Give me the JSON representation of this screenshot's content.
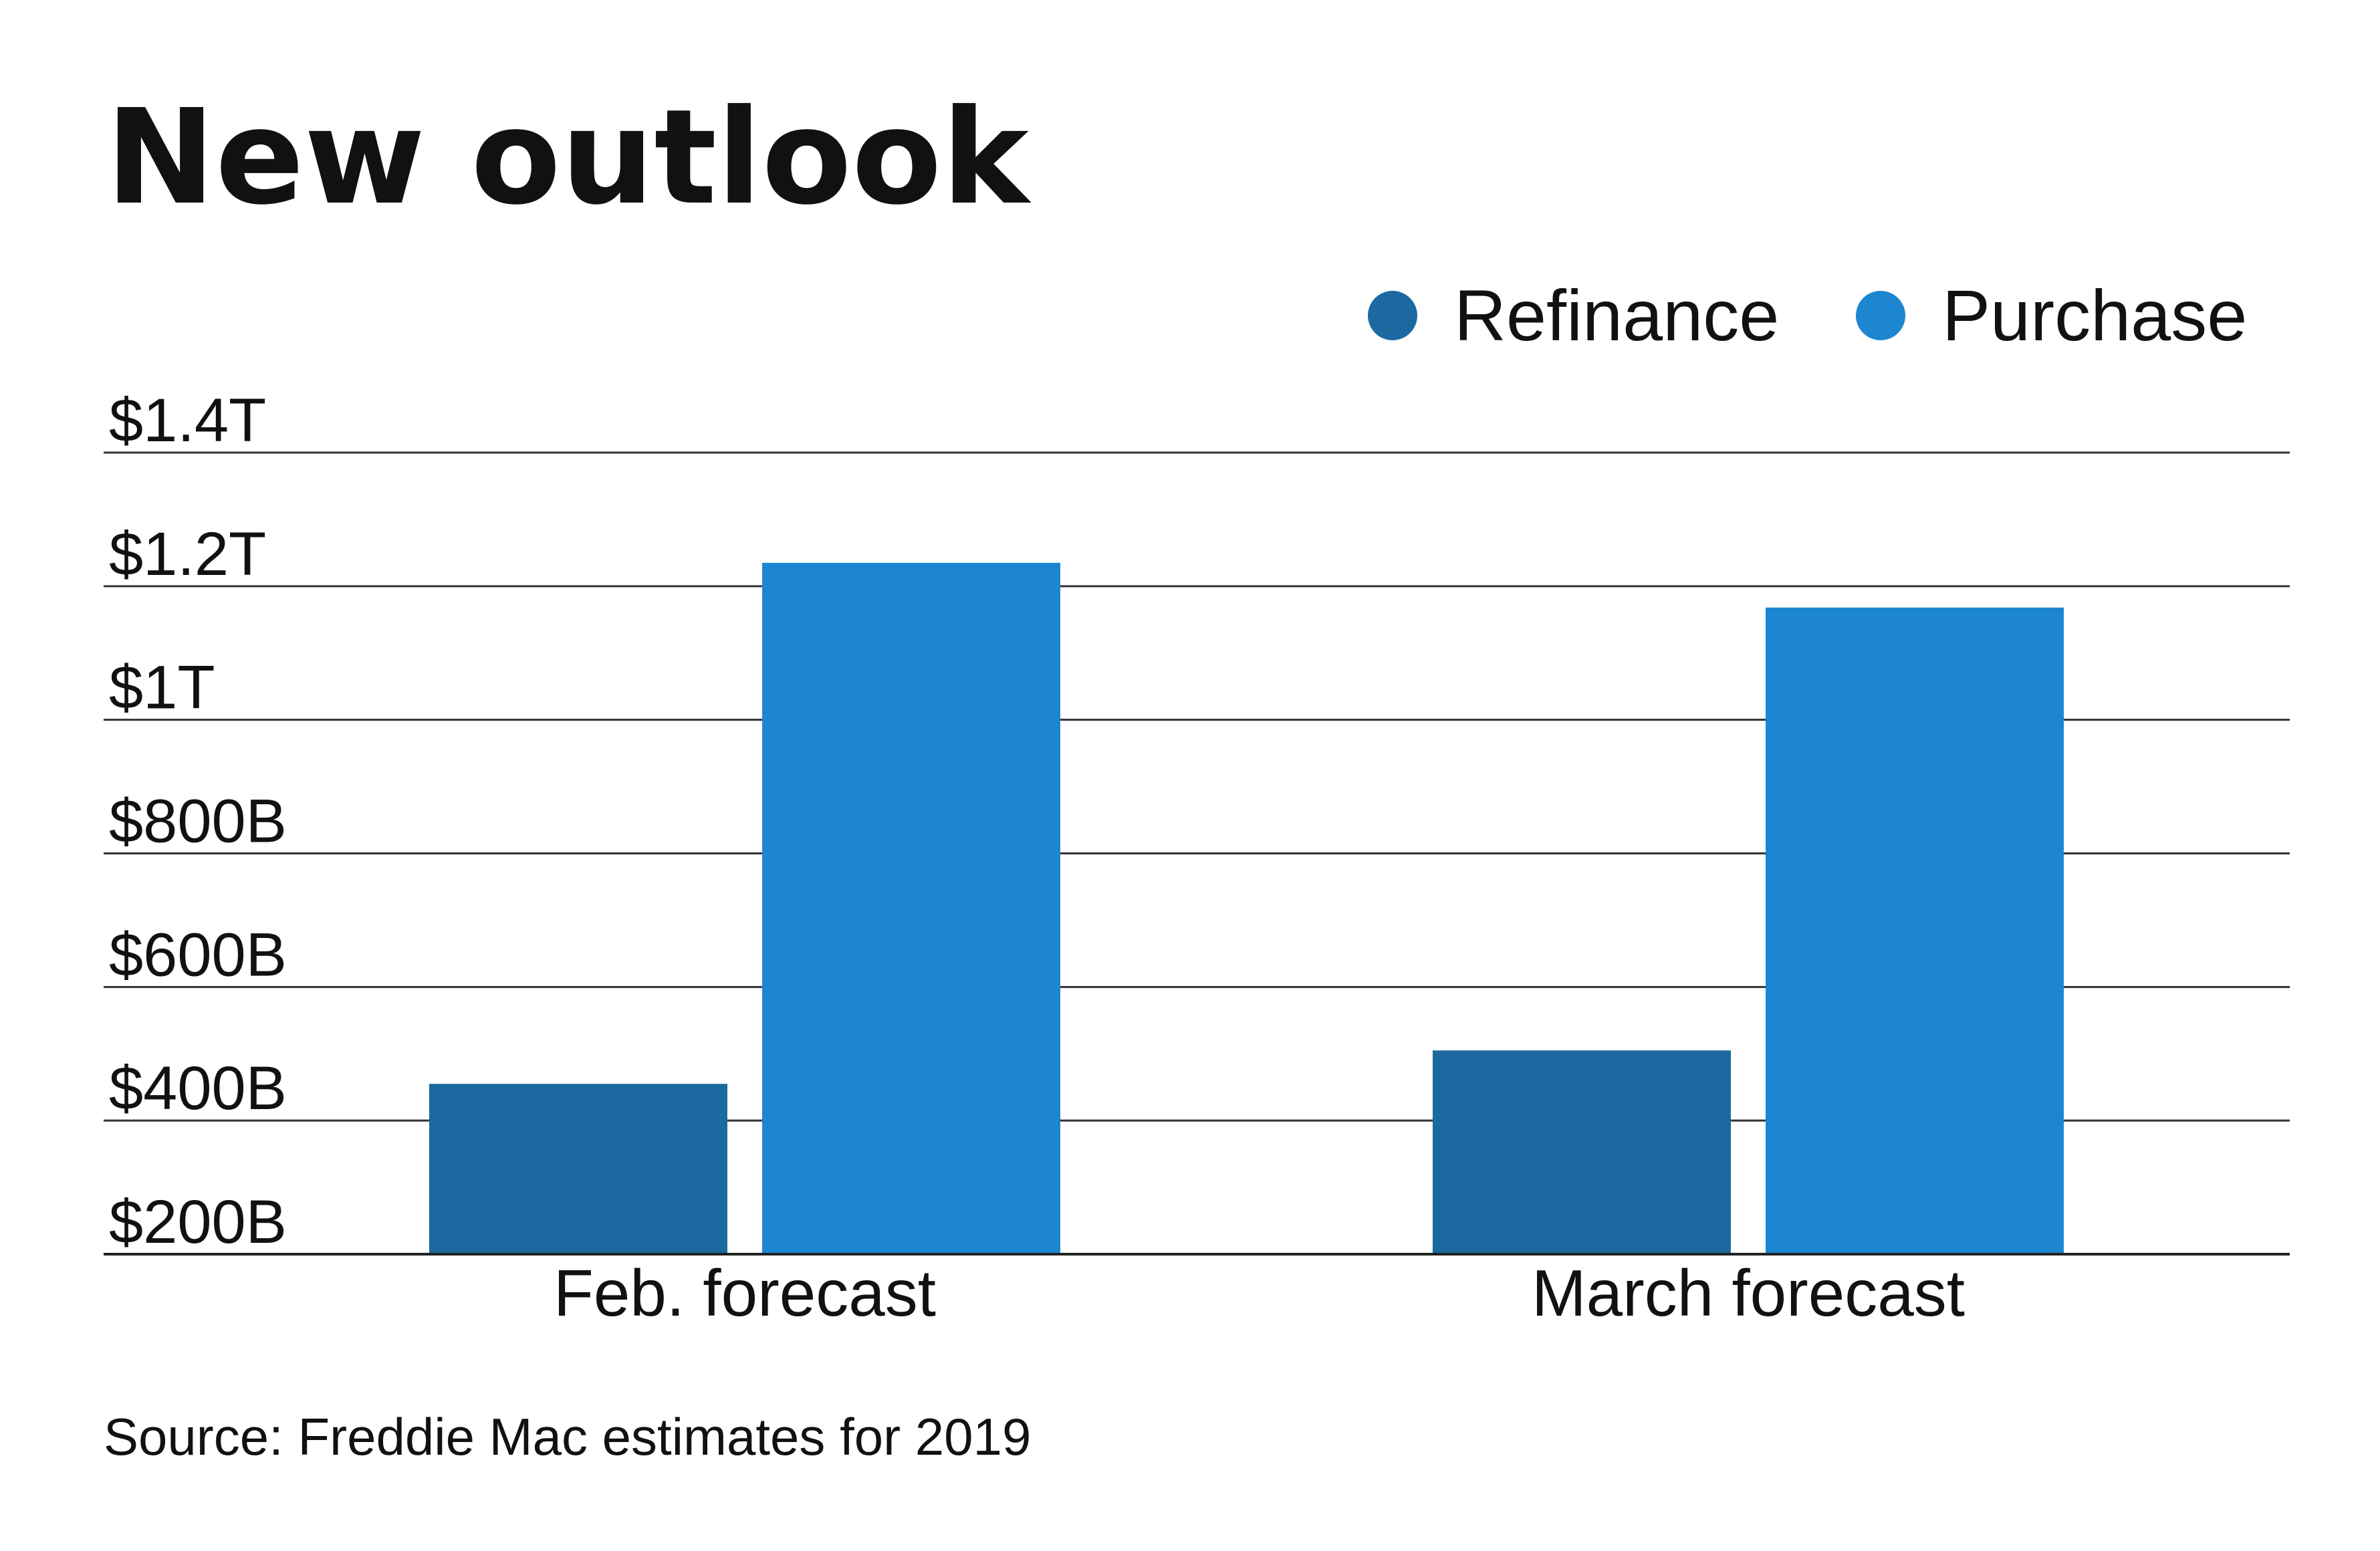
{
  "chart_data": {
    "type": "bar",
    "title": "New outlook",
    "categories": [
      "Feb. forecast",
      "March forecast"
    ],
    "series": [
      {
        "name": "Refinance",
        "color": "#1b69a0",
        "values": [
          455,
          505
        ]
      },
      {
        "name": "Purchase",
        "color": "#1c87d0",
        "values": [
          1235,
          1168
        ]
      }
    ],
    "y_ticks": [
      {
        "value": 200,
        "label": "$200B"
      },
      {
        "value": 400,
        "label": "$400B"
      },
      {
        "value": 600,
        "label": "$600B"
      },
      {
        "value": 800,
        "label": "$800B"
      },
      {
        "value": 1000,
        "label": "$1T"
      },
      {
        "value": 1200,
        "label": "$1.2T"
      },
      {
        "value": 1400,
        "label": "$1.4T"
      }
    ],
    "ylim": [
      200,
      1400
    ],
    "units": "billions of dollars",
    "grid": true,
    "legend_position": "top-right",
    "xlabel": "",
    "ylabel": "",
    "source": "Source: Freddie Mac estimates for 2019"
  }
}
